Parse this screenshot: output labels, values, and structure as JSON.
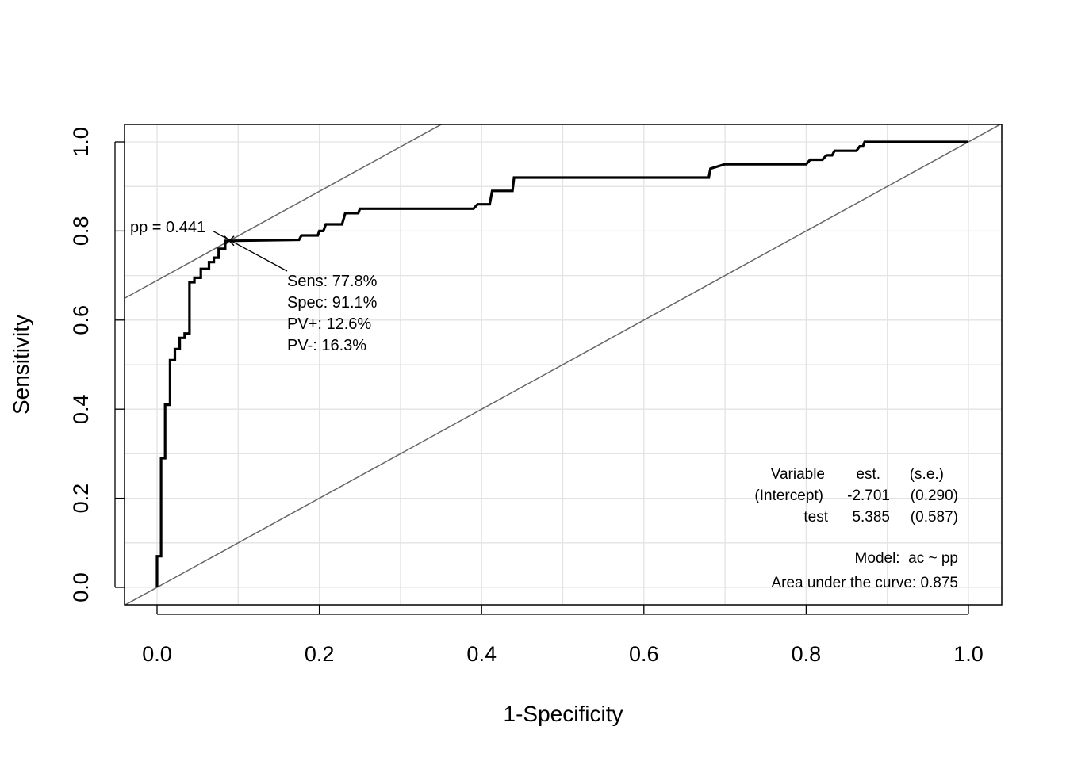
{
  "chart_data": {
    "type": "line",
    "xlabel": "1-Specificity",
    "ylabel": "Sensitivity",
    "xlim": [
      0,
      1
    ],
    "ylim": [
      0,
      1
    ],
    "xticks": [
      "0.0",
      "0.2",
      "0.4",
      "0.6",
      "0.8",
      "1.0"
    ],
    "yticks": [
      "0.0",
      "0.2",
      "0.4",
      "0.6",
      "0.8",
      "1.0"
    ],
    "grid": true,
    "series": [
      {
        "x": [
          0,
          0,
          0.005,
          0.005,
          0.01,
          0.01,
          0.016,
          0.016,
          0.022,
          0.022,
          0.028,
          0.028,
          0.034,
          0.034,
          0.04,
          0.04,
          0.046,
          0.046,
          0.054,
          0.054,
          0.064,
          0.064,
          0.07,
          0.07,
          0.076,
          0.076,
          0.084,
          0.084,
          0.089,
          0.089,
          0.175,
          0.178,
          0.198,
          0.2,
          0.205,
          0.208,
          0.228,
          0.232,
          0.248,
          0.25,
          0.39,
          0.395,
          0.41,
          0.413,
          0.438,
          0.44,
          0.48,
          0.68,
          0.682,
          0.7,
          0.8,
          0.805,
          0.82,
          0.825,
          0.832,
          0.835,
          0.862,
          0.866,
          0.87,
          0.872,
          1.0
        ],
        "y": [
          0,
          0.07,
          0.07,
          0.29,
          0.29,
          0.41,
          0.41,
          0.51,
          0.51,
          0.535,
          0.535,
          0.56,
          0.56,
          0.57,
          0.57,
          0.685,
          0.685,
          0.695,
          0.695,
          0.715,
          0.715,
          0.73,
          0.73,
          0.74,
          0.74,
          0.76,
          0.76,
          0.778,
          0.778,
          0.778,
          0.78,
          0.79,
          0.79,
          0.8,
          0.8,
          0.815,
          0.815,
          0.84,
          0.84,
          0.85,
          0.85,
          0.86,
          0.86,
          0.89,
          0.89,
          0.92,
          0.92,
          0.92,
          0.94,
          0.95,
          0.95,
          0.96,
          0.96,
          0.97,
          0.97,
          0.98,
          0.98,
          0.99,
          0.99,
          1.0,
          1.0
        ]
      }
    ],
    "reference_lines": [
      {
        "slope": 1,
        "intercept": 0
      },
      {
        "slope": 1,
        "intercept": 0.689
      }
    ],
    "cutoff": {
      "point": {
        "x": 0.089,
        "y": 0.778
      },
      "label": "pp = 0.441",
      "stats": [
        "Sens: 77.8%",
        "Spec: 91.1%",
        "PV+: 12.6%",
        "PV-: 16.3%"
      ]
    },
    "table": {
      "header": [
        "Variable",
        "est.",
        "(s.e.)"
      ],
      "rows": [
        [
          "(Intercept)",
          "-2.701",
          "(0.290)"
        ],
        [
          "test",
          "5.385",
          "(0.587)"
        ]
      ]
    },
    "model": "Model:  ac ~ pp",
    "auc": "Area under the curve: 0.875"
  }
}
